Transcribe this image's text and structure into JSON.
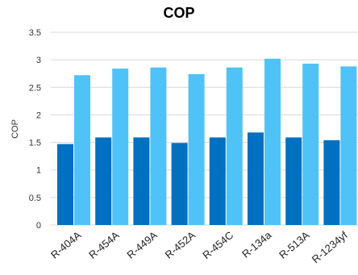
{
  "chart_data": {
    "type": "bar",
    "title": "COP",
    "xlabel": "",
    "ylabel": "COP",
    "ylim": [
      0,
      3.5
    ],
    "yticks": [
      "0",
      "0.5",
      "1",
      "1.5",
      "2",
      "2.5",
      "3",
      "3.5"
    ],
    "grid": true,
    "legend": "none",
    "categories": [
      "R-404A",
      "R-454A",
      "R-449A",
      "R-452A",
      "R-454C",
      "R-134a",
      "R-513A",
      "R-1234yf"
    ],
    "series": [
      {
        "color": "#0070c0",
        "values": [
          1.47,
          1.59,
          1.59,
          1.49,
          1.59,
          1.68,
          1.59,
          1.54
        ]
      },
      {
        "color": "#4fc3f7",
        "values": [
          2.72,
          2.84,
          2.86,
          2.74,
          2.86,
          3.02,
          2.93,
          2.88
        ]
      }
    ]
  }
}
